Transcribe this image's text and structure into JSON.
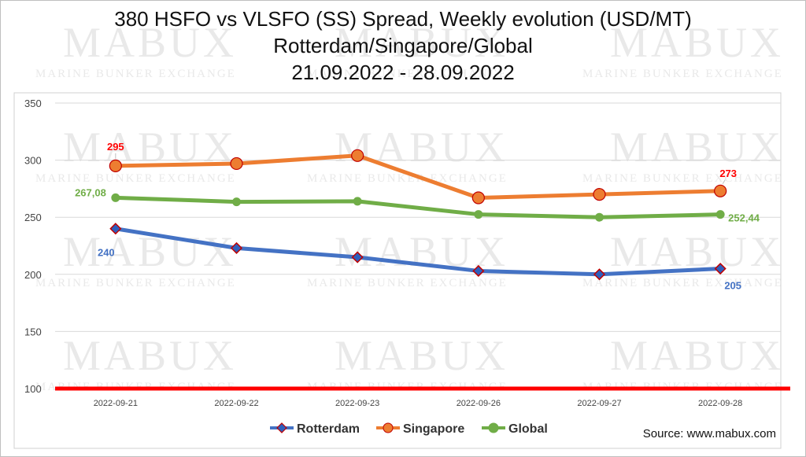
{
  "chart_data": {
    "type": "line",
    "title_lines": [
      "380 HSFO vs VLSFO (SS) Spread, Weekly evolution (USD/MT)",
      "Rotterdam/Singapore/Global",
      "21.09.2022 - 28.09.2022"
    ],
    "categories": [
      "2022-09-21",
      "2022-09-22",
      "2022-09-23",
      "2022-09-26",
      "2022-09-27",
      "2022-09-28"
    ],
    "ylim": [
      100,
      350
    ],
    "yticks": [
      100,
      150,
      200,
      250,
      300,
      350
    ],
    "grid": true,
    "legend_position": "bottom",
    "reference_line": {
      "value": 100,
      "color": "#ff0000"
    },
    "series": [
      {
        "name": "Rotterdam",
        "color": "#4472c4",
        "marker": "diamond",
        "marker_fill": "#2e5fbd",
        "marker_stroke": "#c00000",
        "values": [
          240,
          223,
          215,
          203,
          200,
          205
        ]
      },
      {
        "name": "Singapore",
        "color": "#ed7d31",
        "marker": "circle",
        "marker_fill": "#ed7d31",
        "marker_stroke": "#c00000",
        "values": [
          295,
          297,
          304,
          267,
          270,
          273
        ]
      },
      {
        "name": "Global",
        "color": "#70ad47",
        "marker": "circle",
        "marker_fill": "#70ad47",
        "marker_stroke": "#70ad47",
        "values": [
          267.08,
          263.5,
          264,
          252.5,
          250,
          252.44
        ]
      }
    ],
    "data_labels": [
      {
        "series": 1,
        "index": 0,
        "text": "295",
        "color": "#ff0000"
      },
      {
        "series": 1,
        "index": 5,
        "text": "273",
        "color": "#ff0000"
      },
      {
        "series": 2,
        "index": 0,
        "text": "267,08",
        "color": "#70ad47"
      },
      {
        "series": 2,
        "index": 5,
        "text": "252,44",
        "color": "#70ad47"
      },
      {
        "series": 0,
        "index": 0,
        "text": "240",
        "color": "#4472c4"
      },
      {
        "series": 0,
        "index": 5,
        "text": "205",
        "color": "#4472c4"
      }
    ]
  },
  "watermark": {
    "brand": "MABUX",
    "tagline": "MARINE BUNKER EXCHANGE"
  },
  "source": "Source: www.mabux.com"
}
